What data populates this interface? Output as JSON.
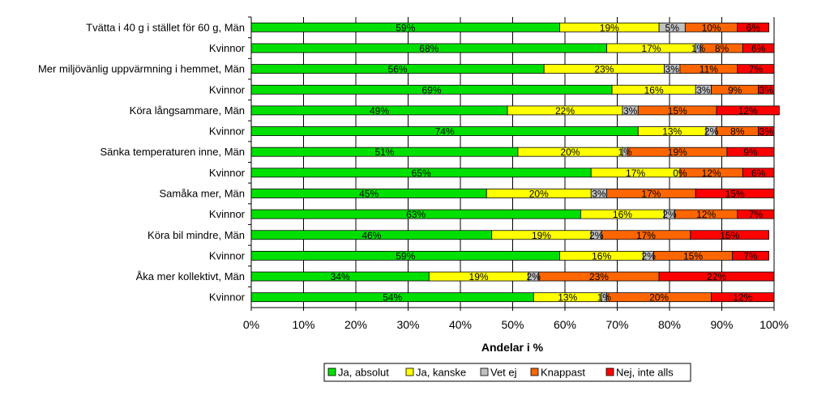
{
  "chart_data": {
    "type": "bar",
    "orientation": "horizontal",
    "stacked": "percent",
    "title": "",
    "xlabel": "Andelar i %",
    "ylabel": "",
    "xlim": [
      0,
      100
    ],
    "x_ticks": [
      "0%",
      "10%",
      "20%",
      "30%",
      "40%",
      "50%",
      "60%",
      "70%",
      "80%",
      "90%",
      "100%"
    ],
    "grid": "vertical",
    "legend_position": "bottom",
    "categories": [
      "Tvätta i 40 g i stället för 60 g, Män",
      "Kvinnor",
      "Mer miljövänlig uppvärmning i hemmet, Män",
      "Kvinnor",
      "Köra långsammare, Män",
      "Kvinnor",
      "Sänka temperaturen inne, Män",
      "Kvinnor",
      "Samåka mer, Män",
      "Kvinnor",
      "Köra bil mindre, Män",
      "Kvinnor",
      "Åka mer kollektivt, Män",
      "Kvinnor"
    ],
    "series": [
      {
        "name": "Ja, absolut",
        "color": "#00e000",
        "values": [
          59,
          68,
          56,
          69,
          49,
          74,
          51,
          65,
          45,
          63,
          46,
          59,
          34,
          54
        ],
        "labels": [
          "59%",
          "68%",
          "56%",
          "69%",
          "49%",
          "74%",
          "51%",
          "65%",
          "45%",
          "63%",
          "46%",
          "59%",
          "34%",
          "54%"
        ]
      },
      {
        "name": "Ja, kanske",
        "color": "#ffff00",
        "values": [
          19,
          17,
          23,
          16,
          22,
          13,
          20,
          17,
          20,
          16,
          19,
          16,
          19,
          13
        ],
        "labels": [
          "19%",
          "17%",
          "23%",
          "16%",
          "22%",
          "13%",
          "20%",
          "17%",
          "20%",
          "16%",
          "19%",
          "16%",
          "19%",
          "13%"
        ]
      },
      {
        "name": "Vet ej",
        "color": "#c0c0c0",
        "values": [
          5,
          1,
          3,
          3,
          3,
          2,
          1,
          0,
          3,
          2,
          2,
          2,
          2,
          1
        ],
        "labels": [
          "5%",
          "1%",
          "3%",
          "3%",
          "3%",
          "2%",
          "1%",
          "0%",
          "3%",
          "2%",
          "2%",
          "2%",
          "2%",
          "1%"
        ]
      },
      {
        "name": "Knappast",
        "color": "#ff6600",
        "values": [
          10,
          8,
          11,
          9,
          15,
          8,
          19,
          12,
          17,
          12,
          17,
          15,
          23,
          20
        ],
        "labels": [
          "10%",
          "8%",
          "11%",
          "9%",
          "15%",
          "8%",
          "19%",
          "12%",
          "17%",
          "12%",
          "17%",
          "15%",
          "23%",
          "20%"
        ]
      },
      {
        "name": "Nej, inte alls",
        "color": "#ff0000",
        "values": [
          6,
          6,
          7,
          3,
          12,
          3,
          9,
          6,
          15,
          7,
          15,
          7,
          22,
          12
        ],
        "labels": [
          "6%",
          "6%",
          "7%",
          "3%",
          "12%",
          "3%",
          "9%",
          "6%",
          "15%",
          "7%",
          "15%",
          "7%",
          "22%",
          "12%"
        ]
      }
    ]
  }
}
